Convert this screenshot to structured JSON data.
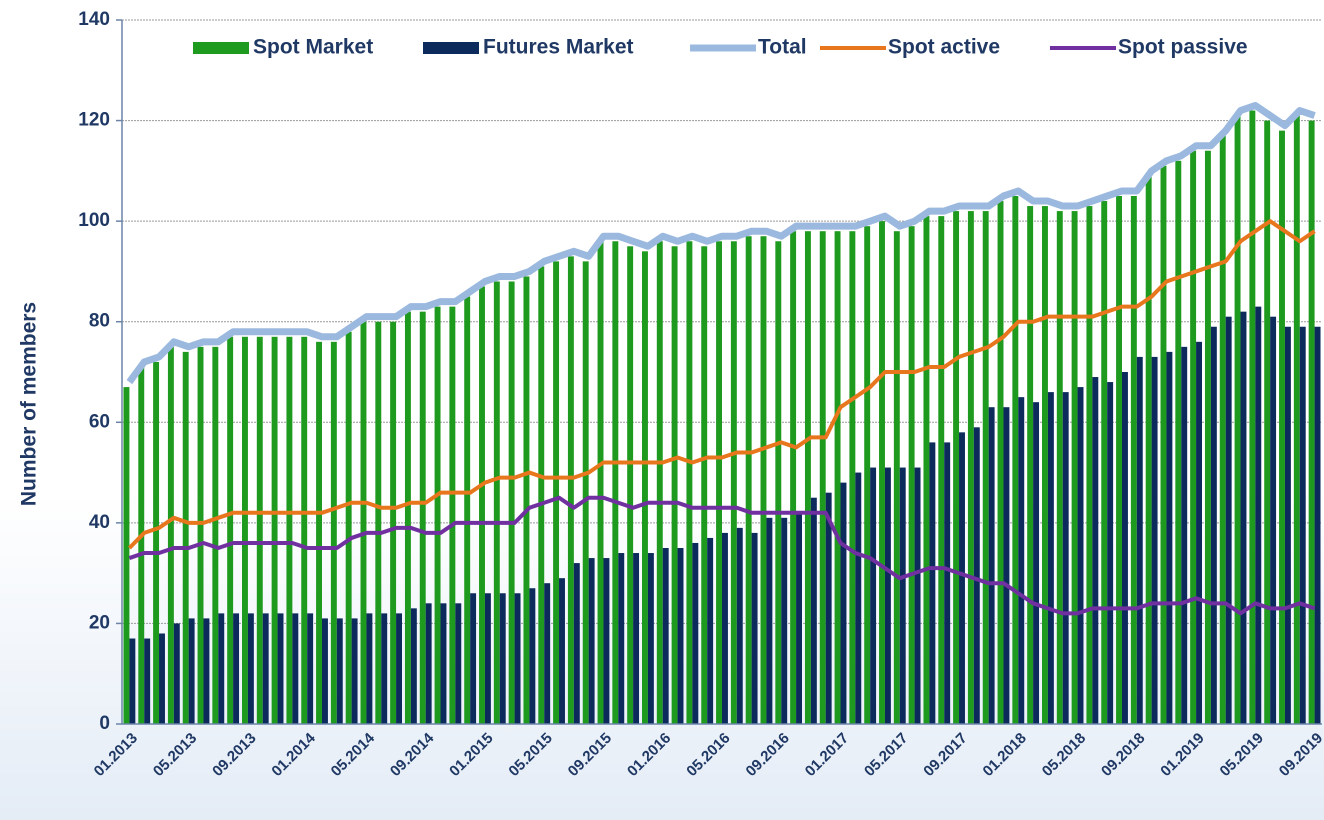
{
  "chart_data": {
    "type": "bar",
    "y_label": "Number of members",
    "categories": [
      "01.2013",
      null,
      null,
      null,
      "05.2013",
      null,
      null,
      null,
      "09.2013",
      null,
      null,
      null,
      "01.2014",
      null,
      null,
      null,
      "05.2014",
      null,
      null,
      null,
      "09.2014",
      null,
      null,
      null,
      "01.2015",
      null,
      null,
      null,
      "05.2015",
      null,
      null,
      null,
      "09.2015",
      null,
      null,
      null,
      "01.2016",
      null,
      null,
      null,
      "05.2016",
      null,
      null,
      null,
      "09.2016",
      null,
      null,
      null,
      "01.2017",
      null,
      null,
      null,
      "05.2017",
      null,
      null,
      null,
      "09.2017",
      null,
      null,
      null,
      "01.2018",
      null,
      null,
      null,
      "05.2018",
      null,
      null,
      null,
      "09.2018",
      null,
      null,
      null,
      "01.2019",
      null,
      null,
      null,
      "05.2019",
      null,
      null,
      null,
      "09.2019"
    ],
    "series": [
      {
        "name": "Spot Market",
        "type": "bar",
        "color": "#1e9a1e",
        "values": [
          67,
          71,
          72,
          75,
          74,
          75,
          75,
          77,
          77,
          77,
          77,
          77,
          77,
          76,
          76,
          78,
          80,
          80,
          80,
          82,
          82,
          83,
          83,
          85,
          87,
          88,
          88,
          89,
          91,
          92,
          93,
          92,
          96,
          96,
          95,
          94,
          96,
          95,
          96,
          95,
          96,
          96,
          97,
          97,
          96,
          98,
          98,
          98,
          98,
          98,
          99,
          100,
          98,
          99,
          101,
          101,
          102,
          102,
          102,
          104,
          105,
          103,
          103,
          102,
          102,
          103,
          104,
          105,
          105,
          109,
          111,
          112,
          114,
          114,
          117,
          121,
          122,
          120,
          118,
          121,
          120
        ]
      },
      {
        "name": "Futures Market",
        "type": "bar",
        "color": "#0c2a5c",
        "values": [
          17,
          17,
          18,
          20,
          21,
          21,
          22,
          22,
          22,
          22,
          22,
          22,
          22,
          21,
          21,
          21,
          22,
          22,
          22,
          23,
          24,
          24,
          24,
          26,
          26,
          26,
          26,
          27,
          28,
          29,
          32,
          33,
          33,
          34,
          34,
          34,
          35,
          35,
          36,
          37,
          38,
          39,
          38,
          41,
          41,
          42,
          45,
          46,
          48,
          50,
          51,
          51,
          51,
          51,
          56,
          56,
          58,
          59,
          63,
          63,
          65,
          64,
          66,
          66,
          67,
          69,
          68,
          70,
          73,
          73,
          74,
          75,
          76,
          79,
          81,
          82,
          83,
          81,
          79,
          79,
          79
        ]
      },
      {
        "name": "Total",
        "type": "line",
        "color": "#9bb8df",
        "values": [
          68,
          72,
          73,
          76,
          75,
          76,
          76,
          78,
          78,
          78,
          78,
          78,
          78,
          77,
          77,
          79,
          81,
          81,
          81,
          83,
          83,
          84,
          84,
          86,
          88,
          89,
          89,
          90,
          92,
          93,
          94,
          93,
          97,
          97,
          96,
          95,
          97,
          96,
          97,
          96,
          97,
          97,
          98,
          98,
          97,
          99,
          99,
          99,
          99,
          99,
          100,
          101,
          99,
          100,
          102,
          102,
          103,
          103,
          103,
          105,
          106,
          104,
          104,
          103,
          103,
          104,
          105,
          106,
          106,
          110,
          112,
          113,
          115,
          115,
          118,
          122,
          123,
          121,
          119,
          122,
          121
        ]
      },
      {
        "name": "Spot active",
        "type": "line",
        "color": "#e8761c",
        "values": [
          35,
          38,
          39,
          41,
          40,
          40,
          41,
          42,
          42,
          42,
          42,
          42,
          42,
          42,
          43,
          44,
          44,
          43,
          43,
          44,
          44,
          46,
          46,
          46,
          48,
          49,
          49,
          50,
          49,
          49,
          49,
          50,
          52,
          52,
          52,
          52,
          52,
          53,
          52,
          53,
          53,
          54,
          54,
          55,
          56,
          55,
          57,
          57,
          63,
          65,
          67,
          70,
          70,
          70,
          71,
          71,
          73,
          74,
          75,
          77,
          80,
          80,
          81,
          81,
          81,
          81,
          82,
          83,
          83,
          85,
          88,
          89,
          90,
          91,
          92,
          96,
          98,
          100,
          98,
          96,
          98
        ]
      },
      {
        "name": "Spot passive",
        "type": "line",
        "color": "#7030a0",
        "values": [
          33,
          34,
          34,
          35,
          35,
          36,
          35,
          36,
          36,
          36,
          36,
          36,
          35,
          35,
          35,
          37,
          38,
          38,
          39,
          39,
          38,
          38,
          40,
          40,
          40,
          40,
          40,
          43,
          44,
          45,
          43,
          45,
          45,
          44,
          43,
          44,
          44,
          44,
          43,
          43,
          43,
          43,
          42,
          42,
          42,
          42,
          42,
          42,
          36,
          34,
          33,
          31,
          29,
          30,
          31,
          31,
          30,
          29,
          28,
          28,
          26,
          24,
          23,
          22,
          22,
          23,
          23,
          23,
          23,
          24,
          24,
          24,
          25,
          24,
          24,
          22,
          24,
          23,
          23,
          24,
          23
        ]
      }
    ],
    "ylim": [
      0,
      140
    ],
    "yticks": [
      0,
      20,
      40,
      60,
      80,
      100,
      120,
      140
    ],
    "grid": true,
    "legend": "top"
  }
}
